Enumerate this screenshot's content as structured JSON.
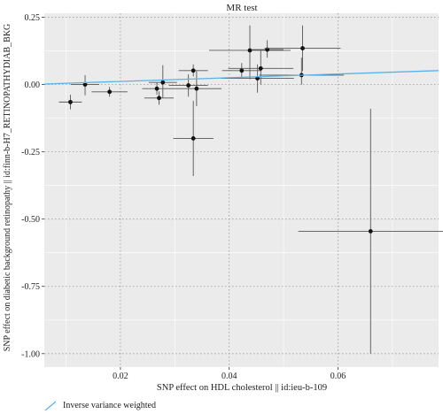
{
  "chart_data": {
    "type": "scatter",
    "title": "MR test",
    "xlabel": "SNP effect on HDL cholesterol || id:ieu-b-109",
    "ylabel": "SNP effect on diabetic background retinopathy || id:finn-b-H7_RETINOPATHYDIAB_BKG",
    "xlim": [
      0.006,
      0.0785
    ],
    "ylim": [
      -1.05,
      0.265
    ],
    "x_ticks": [
      0.02,
      0.04,
      0.06
    ],
    "x_tick_labels": [
      "0.02",
      "0.04",
      "0.06"
    ],
    "y_ticks": [
      0.25,
      0.0,
      -0.25,
      -0.5,
      -0.75,
      -1.0
    ],
    "y_tick_labels": [
      "0.25",
      "0.00",
      "-0.25",
      "-0.50",
      "-0.75",
      "-1.00"
    ],
    "grid": true,
    "background": "#ebebeb",
    "grid_color": "#ffffff",
    "points": [
      {
        "x": 0.0108,
        "y": -0.065,
        "x_lo": 0.0087,
        "x_hi": 0.0129,
        "y_lo": -0.092,
        "y_hi": -0.038
      },
      {
        "x": 0.0135,
        "y": 0.0,
        "x_lo": 0.0109,
        "x_hi": 0.0161,
        "y_lo": -0.04,
        "y_hi": 0.035
      },
      {
        "x": 0.018,
        "y": -0.027,
        "x_lo": 0.0147,
        "x_hi": 0.0213,
        "y_lo": -0.045,
        "y_hi": -0.009
      },
      {
        "x": 0.0267,
        "y": -0.015,
        "x_lo": 0.024,
        "x_hi": 0.0294,
        "y_lo": -0.038,
        "y_hi": 0.008
      },
      {
        "x": 0.0271,
        "y": -0.05,
        "x_lo": 0.0244,
        "x_hi": 0.0298,
        "y_lo": -0.075,
        "y_hi": -0.025
      },
      {
        "x": 0.0278,
        "y": 0.008,
        "x_lo": 0.0252,
        "x_hi": 0.0304,
        "y_lo": -0.05,
        "y_hi": 0.072
      },
      {
        "x": 0.0325,
        "y": -0.003,
        "x_lo": 0.0289,
        "x_hi": 0.0361,
        "y_lo": -0.045,
        "y_hi": 0.038
      },
      {
        "x": 0.0334,
        "y": 0.052,
        "x_lo": 0.0307,
        "x_hi": 0.0361,
        "y_lo": 0.03,
        "y_hi": 0.075
      },
      {
        "x": 0.034,
        "y": -0.015,
        "x_lo": 0.0294,
        "x_hi": 0.0386,
        "y_lo": -0.08,
        "y_hi": 0.05
      },
      {
        "x": 0.0334,
        "y": -0.2,
        "x_lo": 0.0297,
        "x_hi": 0.0371,
        "y_lo": -0.34,
        "y_hi": -0.06
      },
      {
        "x": 0.0423,
        "y": 0.052,
        "x_lo": 0.0387,
        "x_hi": 0.0459,
        "y_lo": 0.025,
        "y_hi": 0.08
      },
      {
        "x": 0.0438,
        "y": 0.127,
        "x_lo": 0.0363,
        "x_hi": 0.0513,
        "y_lo": 0.02,
        "y_hi": 0.22
      },
      {
        "x": 0.0452,
        "y": 0.023,
        "x_lo": 0.0385,
        "x_hi": 0.0519,
        "y_lo": -0.03,
        "y_hi": 0.075
      },
      {
        "x": 0.0458,
        "y": 0.06,
        "x_lo": 0.0398,
        "x_hi": 0.0518,
        "y_lo": 0.0,
        "y_hi": 0.13
      },
      {
        "x": 0.047,
        "y": 0.13,
        "x_lo": 0.044,
        "x_hi": 0.05,
        "y_lo": 0.1,
        "y_hi": 0.165
      },
      {
        "x": 0.0535,
        "y": 0.135,
        "x_lo": 0.0465,
        "x_hi": 0.0605,
        "y_lo": 0.05,
        "y_hi": 0.22
      },
      {
        "x": 0.0533,
        "y": 0.035,
        "x_lo": 0.0455,
        "x_hi": 0.0611,
        "y_lo": 0.0,
        "y_hi": 0.1
      },
      {
        "x": 0.066,
        "y": -0.545,
        "x_lo": 0.0527,
        "x_hi": 0.0793,
        "y_lo": -1.0,
        "y_hi": -0.09
      }
    ],
    "fit_line": {
      "x": [
        0.006,
        0.0785
      ],
      "y": [
        0.002,
        0.052
      ],
      "color": "#56b4e9"
    },
    "legend": {
      "position": "bottom-left",
      "entries": [
        "Inverse variance weighted"
      ]
    }
  }
}
